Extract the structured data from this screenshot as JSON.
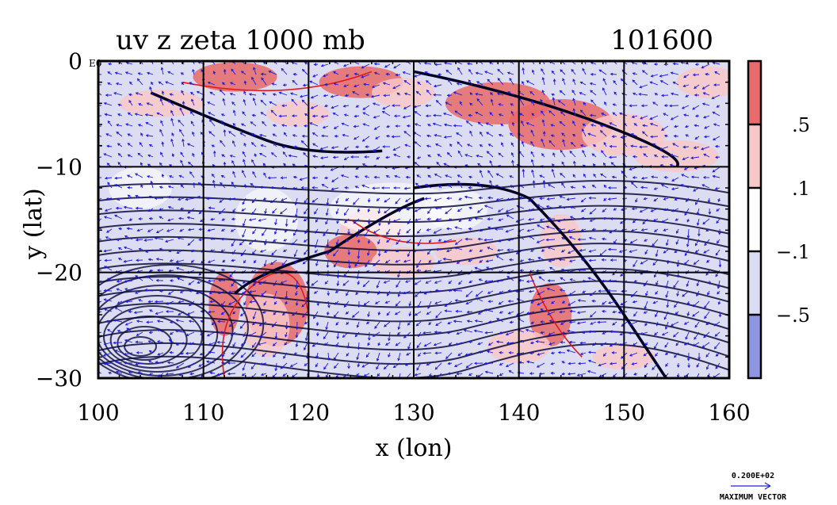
{
  "chart_data": {
    "type": "heatmap",
    "title": "uv z zeta 1000 mb",
    "title_right": "101600",
    "xlabel": "x (lon)",
    "ylabel": "y (lat)",
    "xlim": [
      100,
      160
    ],
    "ylim": [
      -30,
      0
    ],
    "x_ticks": [
      100,
      110,
      120,
      130,
      140,
      150,
      160
    ],
    "y_ticks": [
      0,
      -10,
      -20,
      -30
    ],
    "x_tick_labels": [
      "100",
      "110",
      "120",
      "130",
      "140",
      "150",
      "160"
    ],
    "y_tick_labels": [
      "0",
      "−10",
      "−20",
      "−30"
    ],
    "corner_tag": "E0",
    "grid": true,
    "colorbar": {
      "bins": [
        {
          "color": "#e86a6a"
        },
        {
          "color": "#f8c8c8"
        },
        {
          "color": "#ffffff"
        },
        {
          "color": "#dcdcf2"
        },
        {
          "color": "#8e96e2"
        }
      ],
      "labels": [
        ".5",
        ".1",
        "−.1",
        "−.5"
      ]
    },
    "vector_legend": {
      "value": "0.200E+02",
      "label": "MAXIMUM VECTOR",
      "arrow_color": "#2020d0"
    },
    "colors": {
      "positive": "#e86a6a",
      "weak_positive": "#f8c8c8",
      "weak_negative": "#dcdcf2",
      "negative": "#8e96e2",
      "vector": "#1a1ae0",
      "contour": "#0a0a3a",
      "red_contour": "#e01a1a"
    }
  }
}
